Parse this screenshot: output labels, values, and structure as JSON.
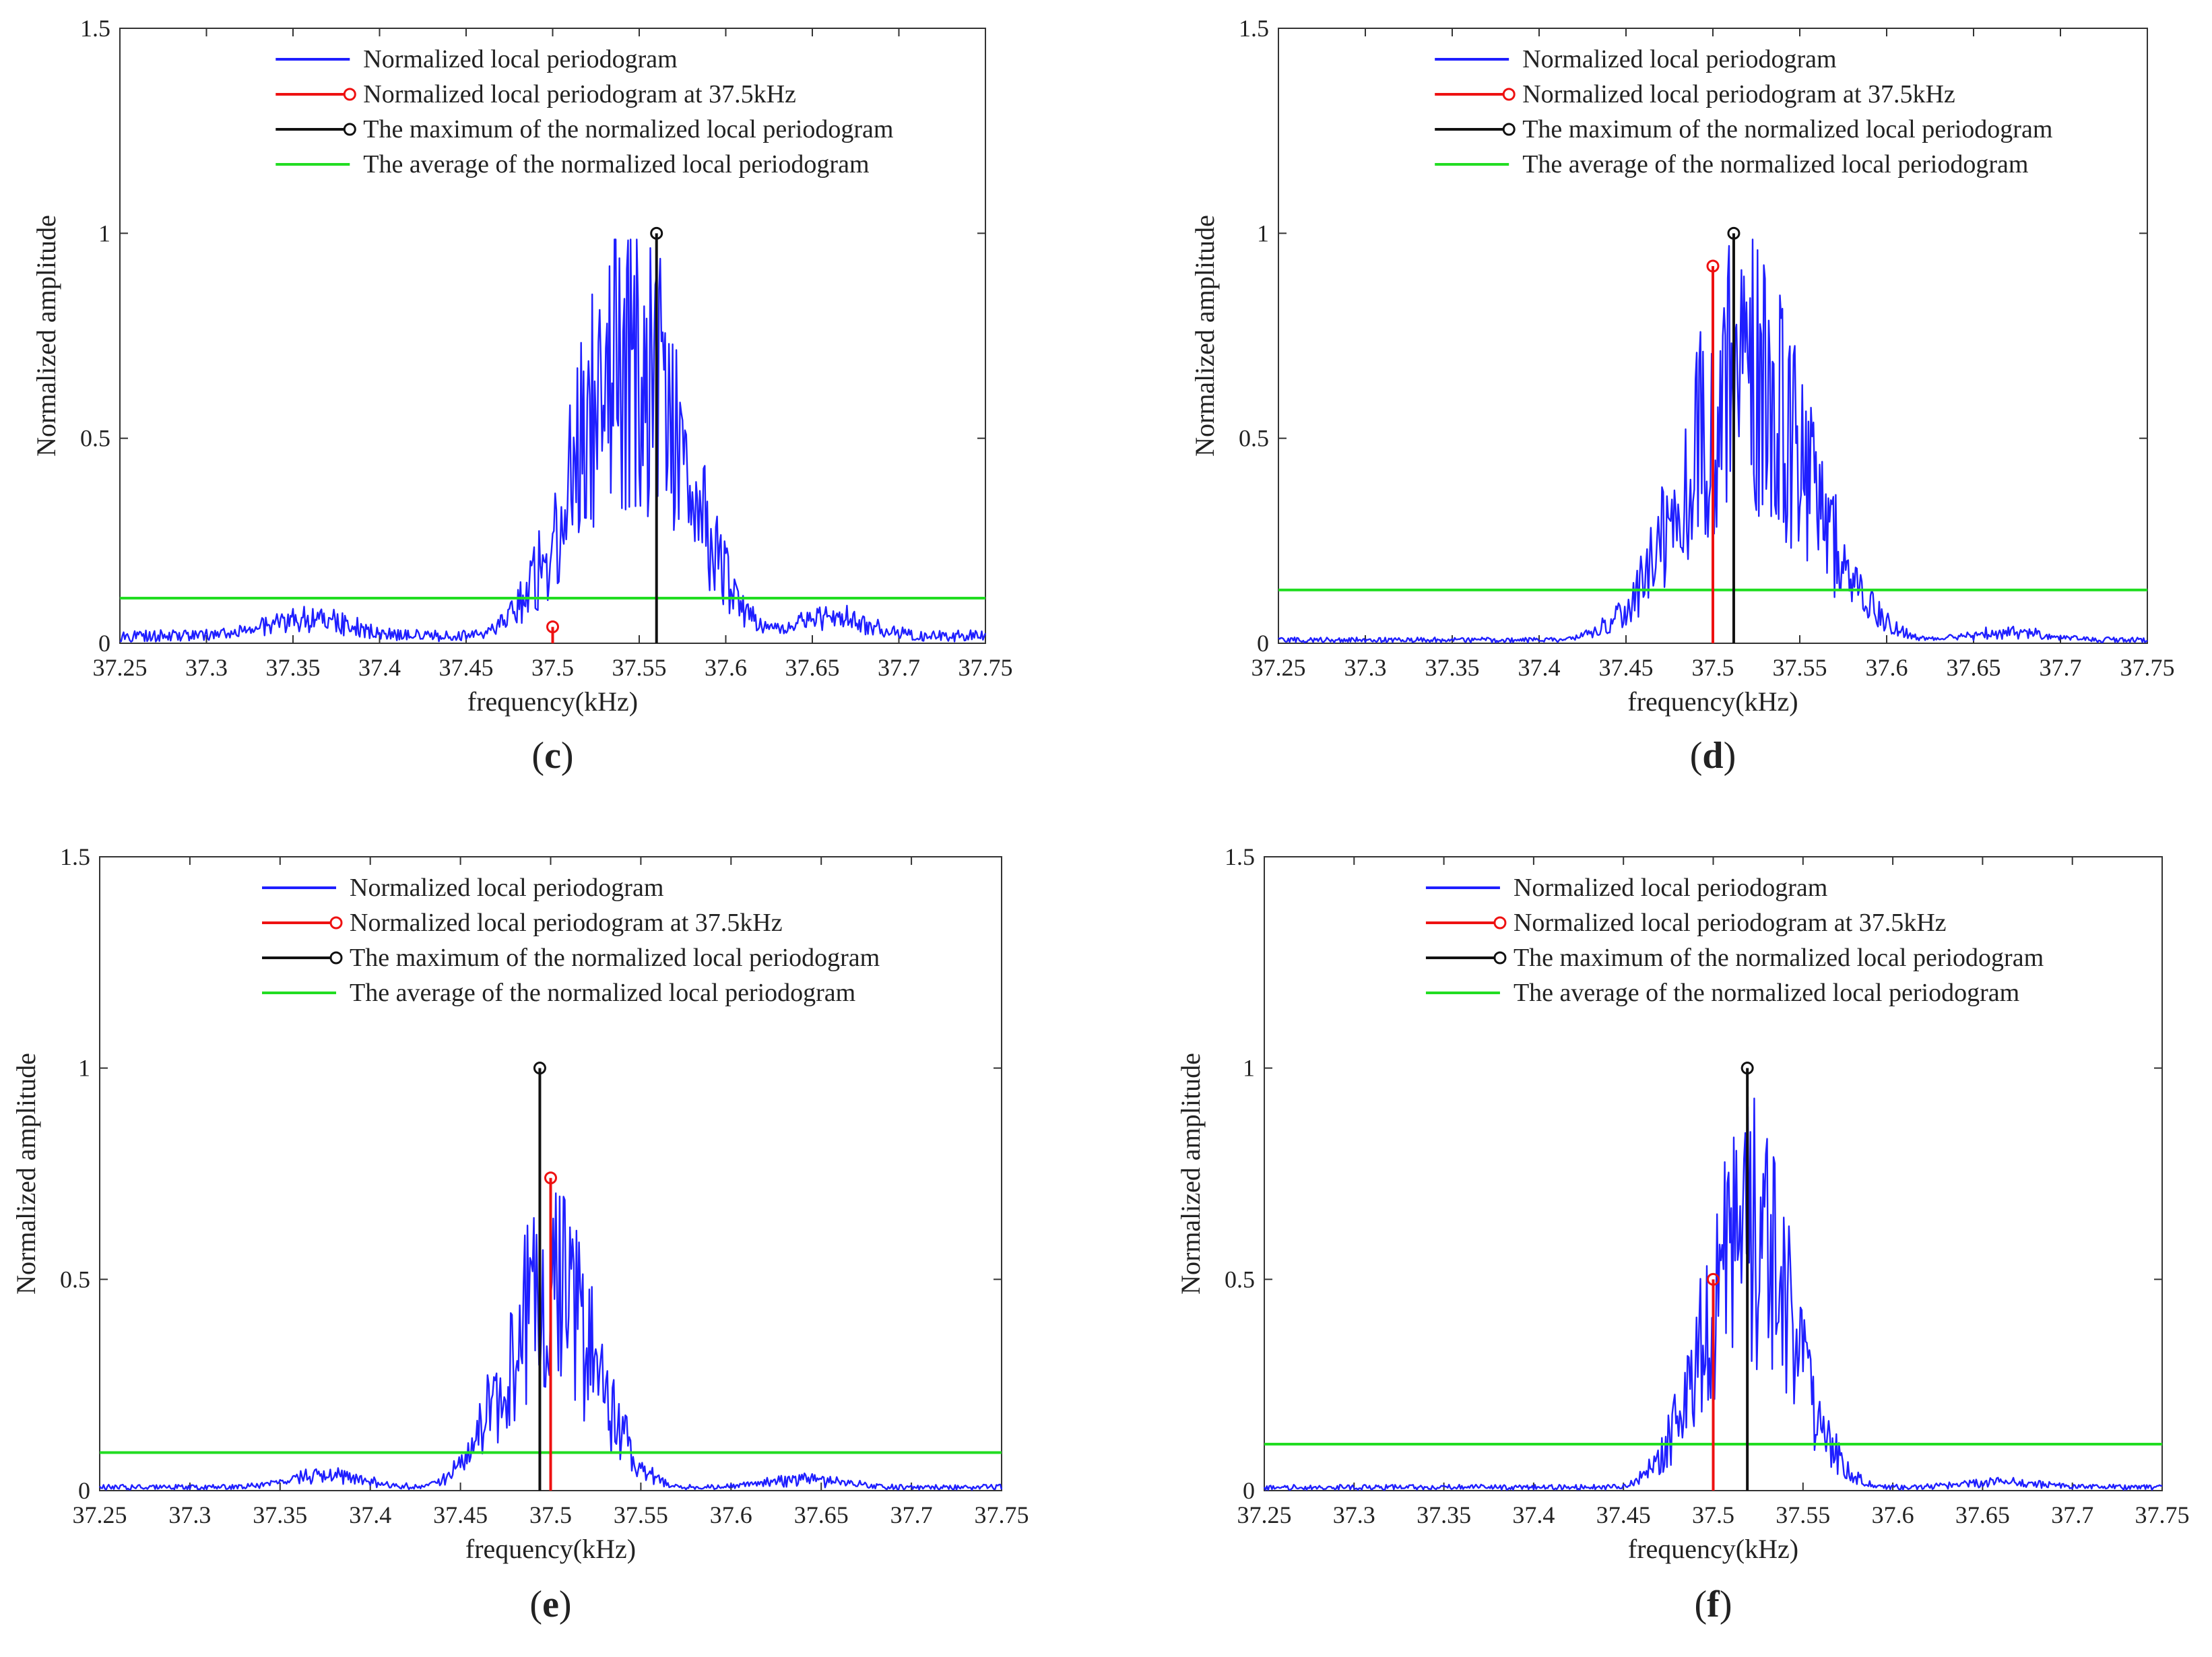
{
  "figure": {
    "common": {
      "ylabel": "Normalized amplitude",
      "xlabel": "frequency(kHz)",
      "legend": [
        "Normalized local periodogram",
        "Normalized local periodogram at 37.5kHz",
        "The maximum of the normalized local periodogram",
        "The average of the normalized local periodogram"
      ],
      "x_ticks": [
        "37.25",
        "37.3",
        "37.35",
        "37.4",
        "37.45",
        "37.5",
        "37.55",
        "37.6",
        "37.65",
        "37.7",
        "37.75"
      ],
      "y_ticks": [
        "0",
        "0.5",
        "1",
        "1.5"
      ]
    },
    "colors": {
      "periodogram": "#1f1fff",
      "at_37_5": "#ee1111",
      "maximum": "#111111",
      "average": "#22dd22"
    }
  },
  "chart_data": [
    {
      "id": "c",
      "panel_label": "c",
      "type": "line",
      "title": "",
      "xlabel": "frequency(kHz)",
      "ylabel": "Normalized amplitude",
      "xlim": [
        37.25,
        37.75
      ],
      "ylim": [
        0,
        1.5
      ],
      "envelope": {
        "center": 37.545,
        "width": 0.045,
        "peak": 0.92,
        "floor": 0.018,
        "side_lobes": [
          {
            "f": 37.36,
            "a": 0.05
          },
          {
            "f": 37.66,
            "a": 0.05
          }
        ]
      },
      "at_37_5kHz": {
        "f": 37.5,
        "a": 0.04
      },
      "maximum": {
        "f": 37.56,
        "a": 1.0
      },
      "average": 0.11,
      "legend_position": "top-center"
    },
    {
      "id": "d",
      "panel_label": "d",
      "type": "line",
      "title": "",
      "xlabel": "frequency(kHz)",
      "ylabel": "Normalized amplitude",
      "xlim": [
        37.25,
        37.75
      ],
      "ylim": [
        0,
        1.5
      ],
      "envelope": {
        "center": 37.52,
        "width": 0.05,
        "peak": 0.85,
        "floor": 0.008,
        "side_lobes": [
          {
            "f": 37.67,
            "a": 0.02
          }
        ]
      },
      "at_37_5kHz": {
        "f": 37.5,
        "a": 0.92
      },
      "maximum": {
        "f": 37.512,
        "a": 1.0
      },
      "average": 0.13,
      "legend_position": "top-center"
    },
    {
      "id": "e",
      "panel_label": "e",
      "type": "line",
      "title": "",
      "xlabel": "frequency(kHz)",
      "ylabel": "Normalized amplitude",
      "xlim": [
        37.25,
        37.75
      ],
      "ylim": [
        0,
        1.5
      ],
      "envelope": {
        "center": 37.5,
        "width": 0.035,
        "peak": 0.62,
        "floor": 0.008,
        "side_lobes": [
          {
            "f": 37.375,
            "a": 0.03
          },
          {
            "f": 37.64,
            "a": 0.02
          }
        ]
      },
      "at_37_5kHz": {
        "f": 37.5,
        "a": 0.74
      },
      "maximum": {
        "f": 37.494,
        "a": 1.0
      },
      "average": 0.09,
      "legend_position": "top-center"
    },
    {
      "id": "f",
      "panel_label": "f",
      "type": "line",
      "title": "",
      "xlabel": "frequency(kHz)",
      "ylabel": "Normalized amplitude",
      "xlim": [
        37.25,
        37.75
      ],
      "ylim": [
        0,
        1.5
      ],
      "envelope": {
        "center": 37.52,
        "width": 0.035,
        "peak": 0.78,
        "floor": 0.008,
        "side_lobes": [
          {
            "f": 37.66,
            "a": 0.015
          }
        ]
      },
      "at_37_5kHz": {
        "f": 37.5,
        "a": 0.5
      },
      "maximum": {
        "f": 37.519,
        "a": 1.0
      },
      "average": 0.11,
      "legend_position": "top-center"
    }
  ]
}
